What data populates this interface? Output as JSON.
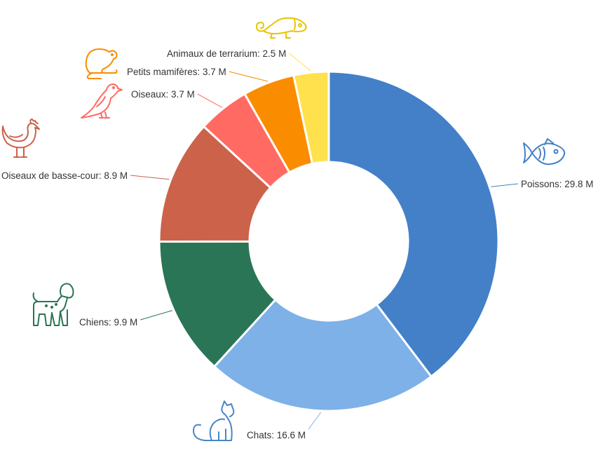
{
  "chart_data": {
    "type": "pie",
    "variant": "donut",
    "unit": "M",
    "slices": [
      {
        "label": "Poissons",
        "value": 29.8,
        "value_text": "29.8 M",
        "color": "#4380c8",
        "icon": "fish-icon"
      },
      {
        "label": "Chats",
        "value": 16.6,
        "value_text": "16.6 M",
        "color": "#7db1e8",
        "icon": "cat-icon"
      },
      {
        "label": "Chiens",
        "value": 9.9,
        "value_text": "9.9 M",
        "color": "#2a7555",
        "icon": "dog-icon"
      },
      {
        "label": "Oiseaux de basse-cour",
        "value": 8.9,
        "value_text": "8.9 M",
        "color": "#cc624a",
        "icon": "hen-icon"
      },
      {
        "label": "Oiseaux",
        "value": 3.7,
        "value_text": "3.7 M",
        "color": "#ff6b63",
        "icon": "bird-icon"
      },
      {
        "label": "Petits mamifères",
        "value": 3.7,
        "value_text": "3.7 M",
        "color": "#fa8c00",
        "icon": "rodent-icon"
      },
      {
        "label": "Animaux de terrarium",
        "value": 2.5,
        "value_text": "2.5 M",
        "color": "#ffe14d",
        "icon": "chameleon-icon"
      }
    ]
  }
}
